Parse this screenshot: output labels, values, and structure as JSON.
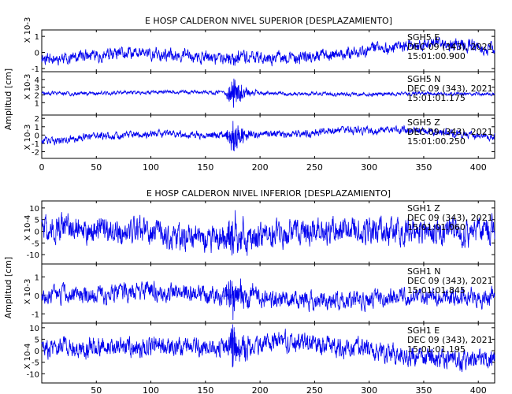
{
  "chart_data": [
    {
      "type": "line",
      "title": "E HOSP CALDERON NIVEL SUPERIOR [DESPLAZAMIENTO]",
      "ylabel": "Amplitud [cm]",
      "xlim": [
        0,
        415
      ],
      "xticks": [
        0,
        50,
        100,
        150,
        200,
        250,
        300,
        350,
        400
      ],
      "line_color": "#0000ee",
      "panels": [
        {
          "scale_label": "X 10-3",
          "ylim": [
            -1.2,
            1.4
          ],
          "yticks": [
            -1,
            0,
            1
          ],
          "station": "SGH5   E",
          "date": "DEC 09 (343), 2021",
          "time": "15:01:00.900",
          "event_at": 175,
          "noise": 0.27,
          "event_amp": 0.3,
          "drift": 0.38,
          "seed": 11
        },
        {
          "scale_label": "X 10-3",
          "ylim": [
            -0.6,
            5.0
          ],
          "yticks": [
            1,
            2,
            3,
            4
          ],
          "station": "SGH5   N",
          "date": "DEC 09 (343), 2021",
          "time": "15:01:01.175",
          "event_at": 175,
          "noise": 0.17,
          "event_amp": 1.9,
          "drift": 0.1,
          "baseline": 2.2,
          "seed": 23
        },
        {
          "scale_label": "X 10-3",
          "ylim": [
            -2.8,
            2.4
          ],
          "yticks": [
            -2,
            -1,
            0,
            1,
            2
          ],
          "station": "SGH5   Z",
          "date": "DEC 09 (343), 2021",
          "time": "15:01:00.250",
          "event_at": 175,
          "noise": 0.32,
          "event_amp": 1.9,
          "drift": 0.45,
          "seed": 37
        }
      ]
    },
    {
      "type": "line",
      "title": "E HOSP CALDERON NIVEL INFERIOR [DESPLAZAMIENTO]",
      "ylabel": "Amplitud [cm]",
      "xlim": [
        0,
        415
      ],
      "xticks": [
        50,
        100,
        150,
        200,
        250,
        300,
        350,
        400
      ],
      "line_color": "#0000ee",
      "panels": [
        {
          "scale_label": "X 10-4",
          "ylim": [
            -14,
            13
          ],
          "yticks": [
            -10,
            -5,
            0,
            5,
            10
          ],
          "station": "SGH1   Z",
          "date": "DEC 09 (343), 2021",
          "time": "15:01:01.060",
          "event_at": 175,
          "noise": 4.0,
          "event_amp": 9,
          "drift": 2.0,
          "seed": 51
        },
        {
          "scale_label": "X 10-3",
          "ylim": [
            -1.5,
            1.7
          ],
          "yticks": [
            -1,
            0,
            1
          ],
          "station": "SGH1   N",
          "date": "DEC 09 (343), 2021",
          "time": "15:01:01.845",
          "event_at": 175,
          "noise": 0.34,
          "event_amp": 1.2,
          "drift": 0.2,
          "seed": 67
        },
        {
          "scale_label": "X 10-4",
          "ylim": [
            -14,
            12
          ],
          "yticks": [
            -10,
            -5,
            0,
            5,
            10
          ],
          "station": "SGH1   E",
          "date": "DEC 09 (343), 2021",
          "time": "15:01:01.195",
          "event_at": 175,
          "noise": 3.0,
          "event_amp": 8,
          "drift": 3.0,
          "seed": 83
        }
      ]
    }
  ]
}
